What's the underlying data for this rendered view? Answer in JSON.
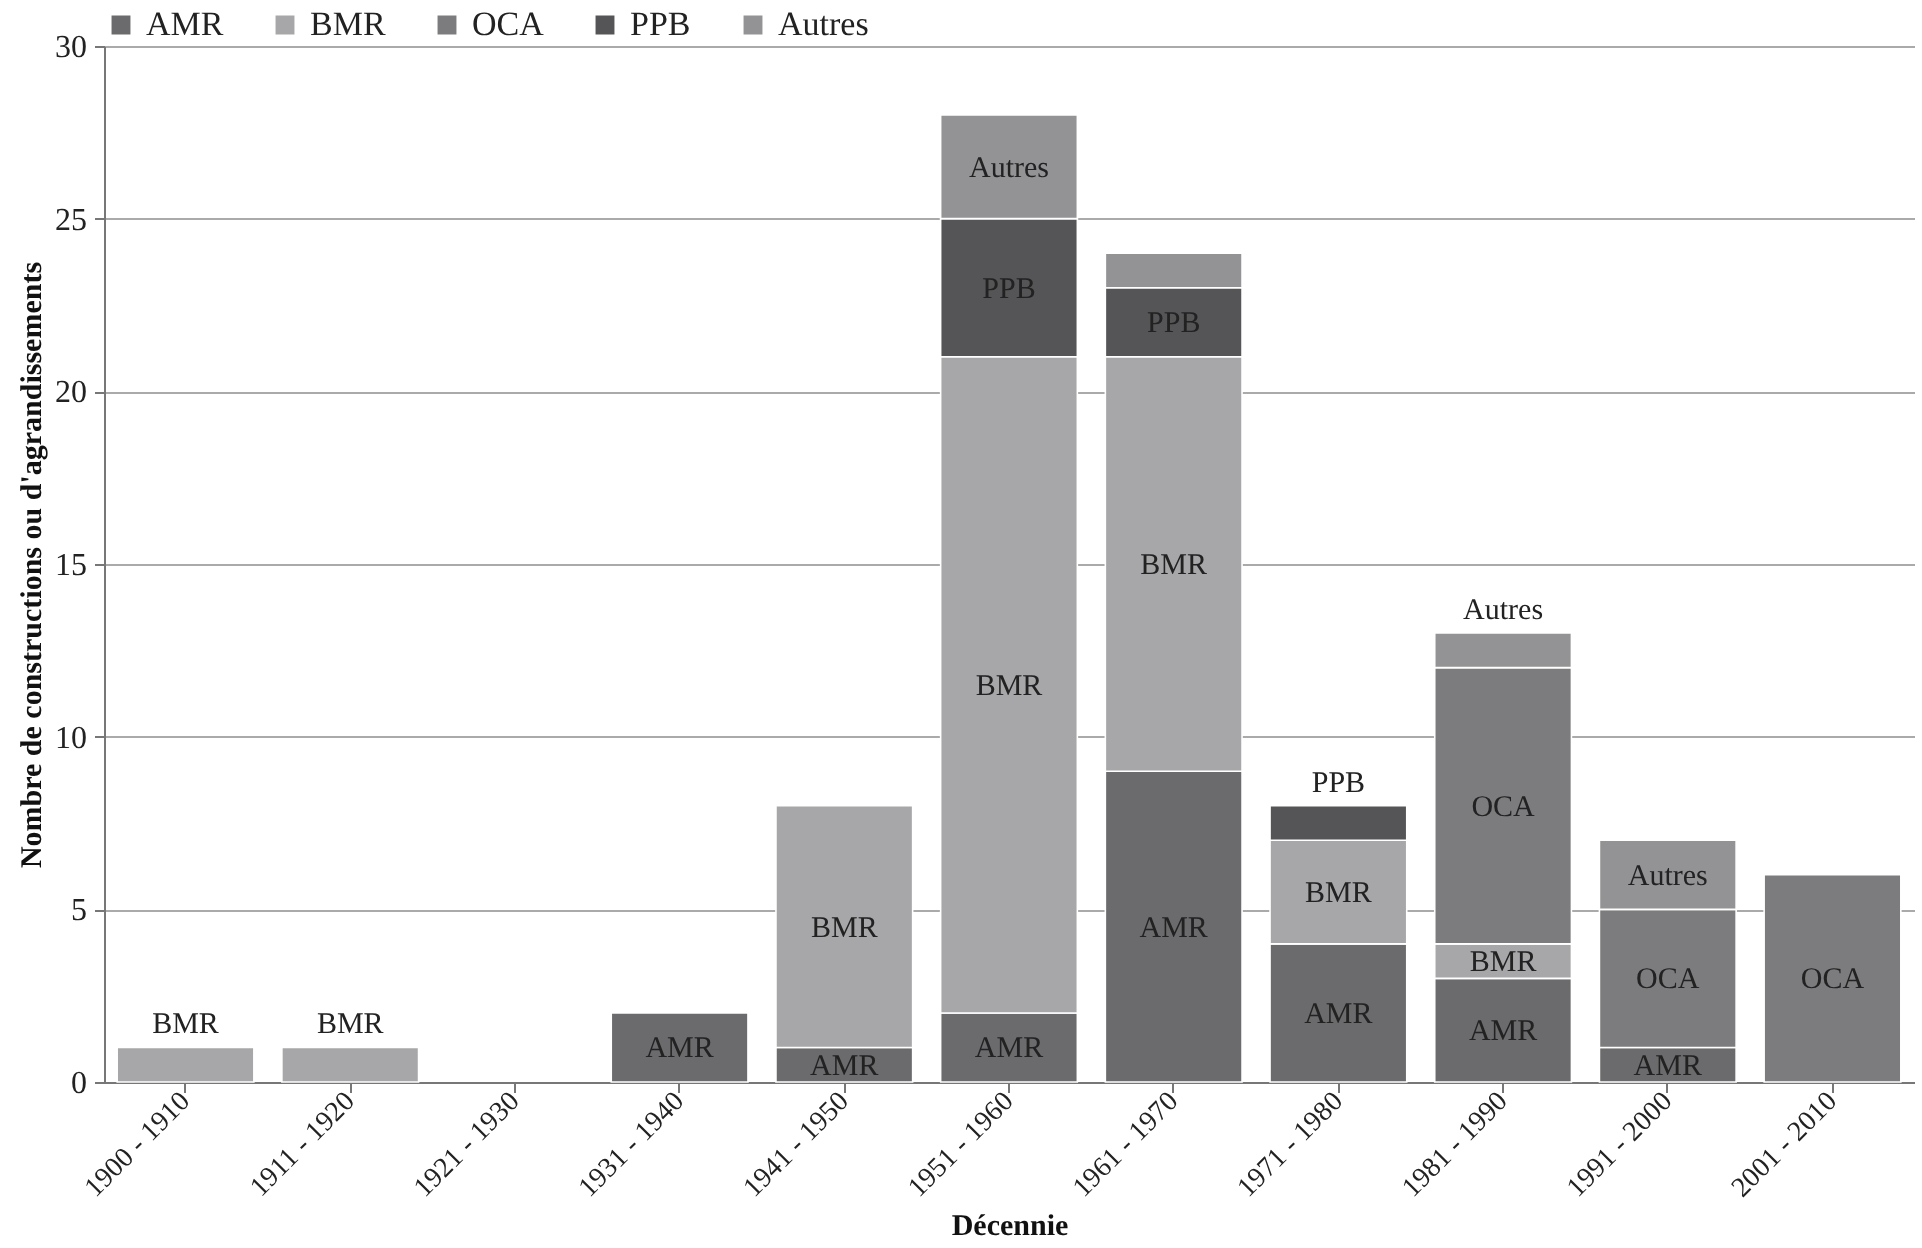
{
  "chart_data": {
    "type": "bar",
    "stacked": true,
    "xlabel": "Décennie",
    "ylabel": "Nombre de constructions ou d'agrandissements",
    "categories": [
      "1900 - 1910",
      "1911 - 1920",
      "1921 - 1930",
      "1931 - 1940",
      "1941 - 1950",
      "1951 - 1960",
      "1961 - 1970",
      "1971 - 1980",
      "1981 - 1990",
      "1991 - 2000",
      "2001 - 2010"
    ],
    "series": [
      {
        "name": "AMR",
        "color": "#6b6b6d",
        "values": [
          null,
          null,
          null,
          2,
          1,
          2,
          9,
          4,
          3,
          1,
          null
        ],
        "value_labels": [
          null,
          null,
          null,
          "AMR",
          "AMR",
          "AMR",
          "AMR",
          "AMR",
          "AMR",
          "AMR",
          null
        ]
      },
      {
        "name": "BMR",
        "color": "#a7a7a9",
        "values": [
          1,
          1,
          null,
          null,
          7,
          19,
          12,
          3,
          1,
          null,
          null
        ],
        "value_labels": [
          "BMR",
          "BMR",
          null,
          null,
          "BMR",
          "BMR",
          "BMR",
          "BMR",
          "BMR",
          null,
          null
        ]
      },
      {
        "name": "OCA",
        "color": "#7c7c7e",
        "values": [
          null,
          null,
          null,
          null,
          null,
          null,
          null,
          null,
          8,
          4,
          6
        ],
        "value_labels": [
          null,
          null,
          null,
          null,
          null,
          null,
          null,
          null,
          "OCA",
          "OCA",
          "OCA"
        ]
      },
      {
        "name": "PPB",
        "color": "#555557",
        "values": [
          null,
          null,
          null,
          null,
          null,
          4,
          2,
          1,
          null,
          null,
          null
        ],
        "value_labels": [
          null,
          null,
          null,
          null,
          null,
          "PPB",
          "PPB",
          "PPB",
          null,
          null,
          null
        ]
      },
      {
        "name": "Autres",
        "color": "#939395",
        "values": [
          null,
          null,
          null,
          null,
          null,
          3,
          1,
          null,
          1,
          2,
          null
        ],
        "value_labels": [
          null,
          null,
          null,
          null,
          null,
          "Autres",
          null,
          null,
          "Autres",
          "Autres",
          null
        ]
      }
    ],
    "ylim": [
      0,
      30
    ],
    "yticks": [
      0,
      5,
      10,
      15,
      20,
      25,
      30
    ],
    "grid": "y",
    "legend": "top"
  }
}
